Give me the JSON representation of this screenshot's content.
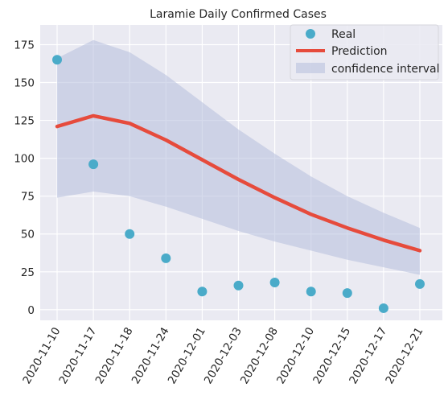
{
  "chart_data": {
    "type": "line",
    "title": "Laramie Daily Confirmed Cases",
    "xlabel": "",
    "ylabel": "",
    "x": [
      "2020-11-10",
      "2020-11-17",
      "2020-11-18",
      "2020-11-24",
      "2020-12-01",
      "2020-12-03",
      "2020-12-08",
      "2020-12-10",
      "2020-12-15",
      "2020-12-17",
      "2020-12-21"
    ],
    "ylim": [
      -7,
      188
    ],
    "yticks": [
      0,
      25,
      50,
      75,
      100,
      125,
      150,
      175
    ],
    "grid": true,
    "legend_position": "top-right",
    "series": [
      {
        "name": "Real",
        "kind": "scatter",
        "color": "#4aabc9",
        "values": [
          165,
          96,
          50,
          34,
          12,
          16,
          18,
          12,
          11,
          1,
          17
        ]
      },
      {
        "name": "Prediction",
        "kind": "line",
        "color": "#e64b3c",
        "values": [
          121,
          128,
          123,
          112,
          99,
          86,
          74,
          63,
          54,
          46,
          39
        ]
      },
      {
        "name": "confidence interval",
        "kind": "band",
        "color": "#b4bedd",
        "lower": [
          74,
          78,
          75,
          68,
          60,
          52,
          45,
          39,
          33,
          28,
          23
        ],
        "upper": [
          166,
          178,
          170,
          155,
          137,
          119,
          103,
          88,
          75,
          64,
          54
        ]
      }
    ]
  }
}
